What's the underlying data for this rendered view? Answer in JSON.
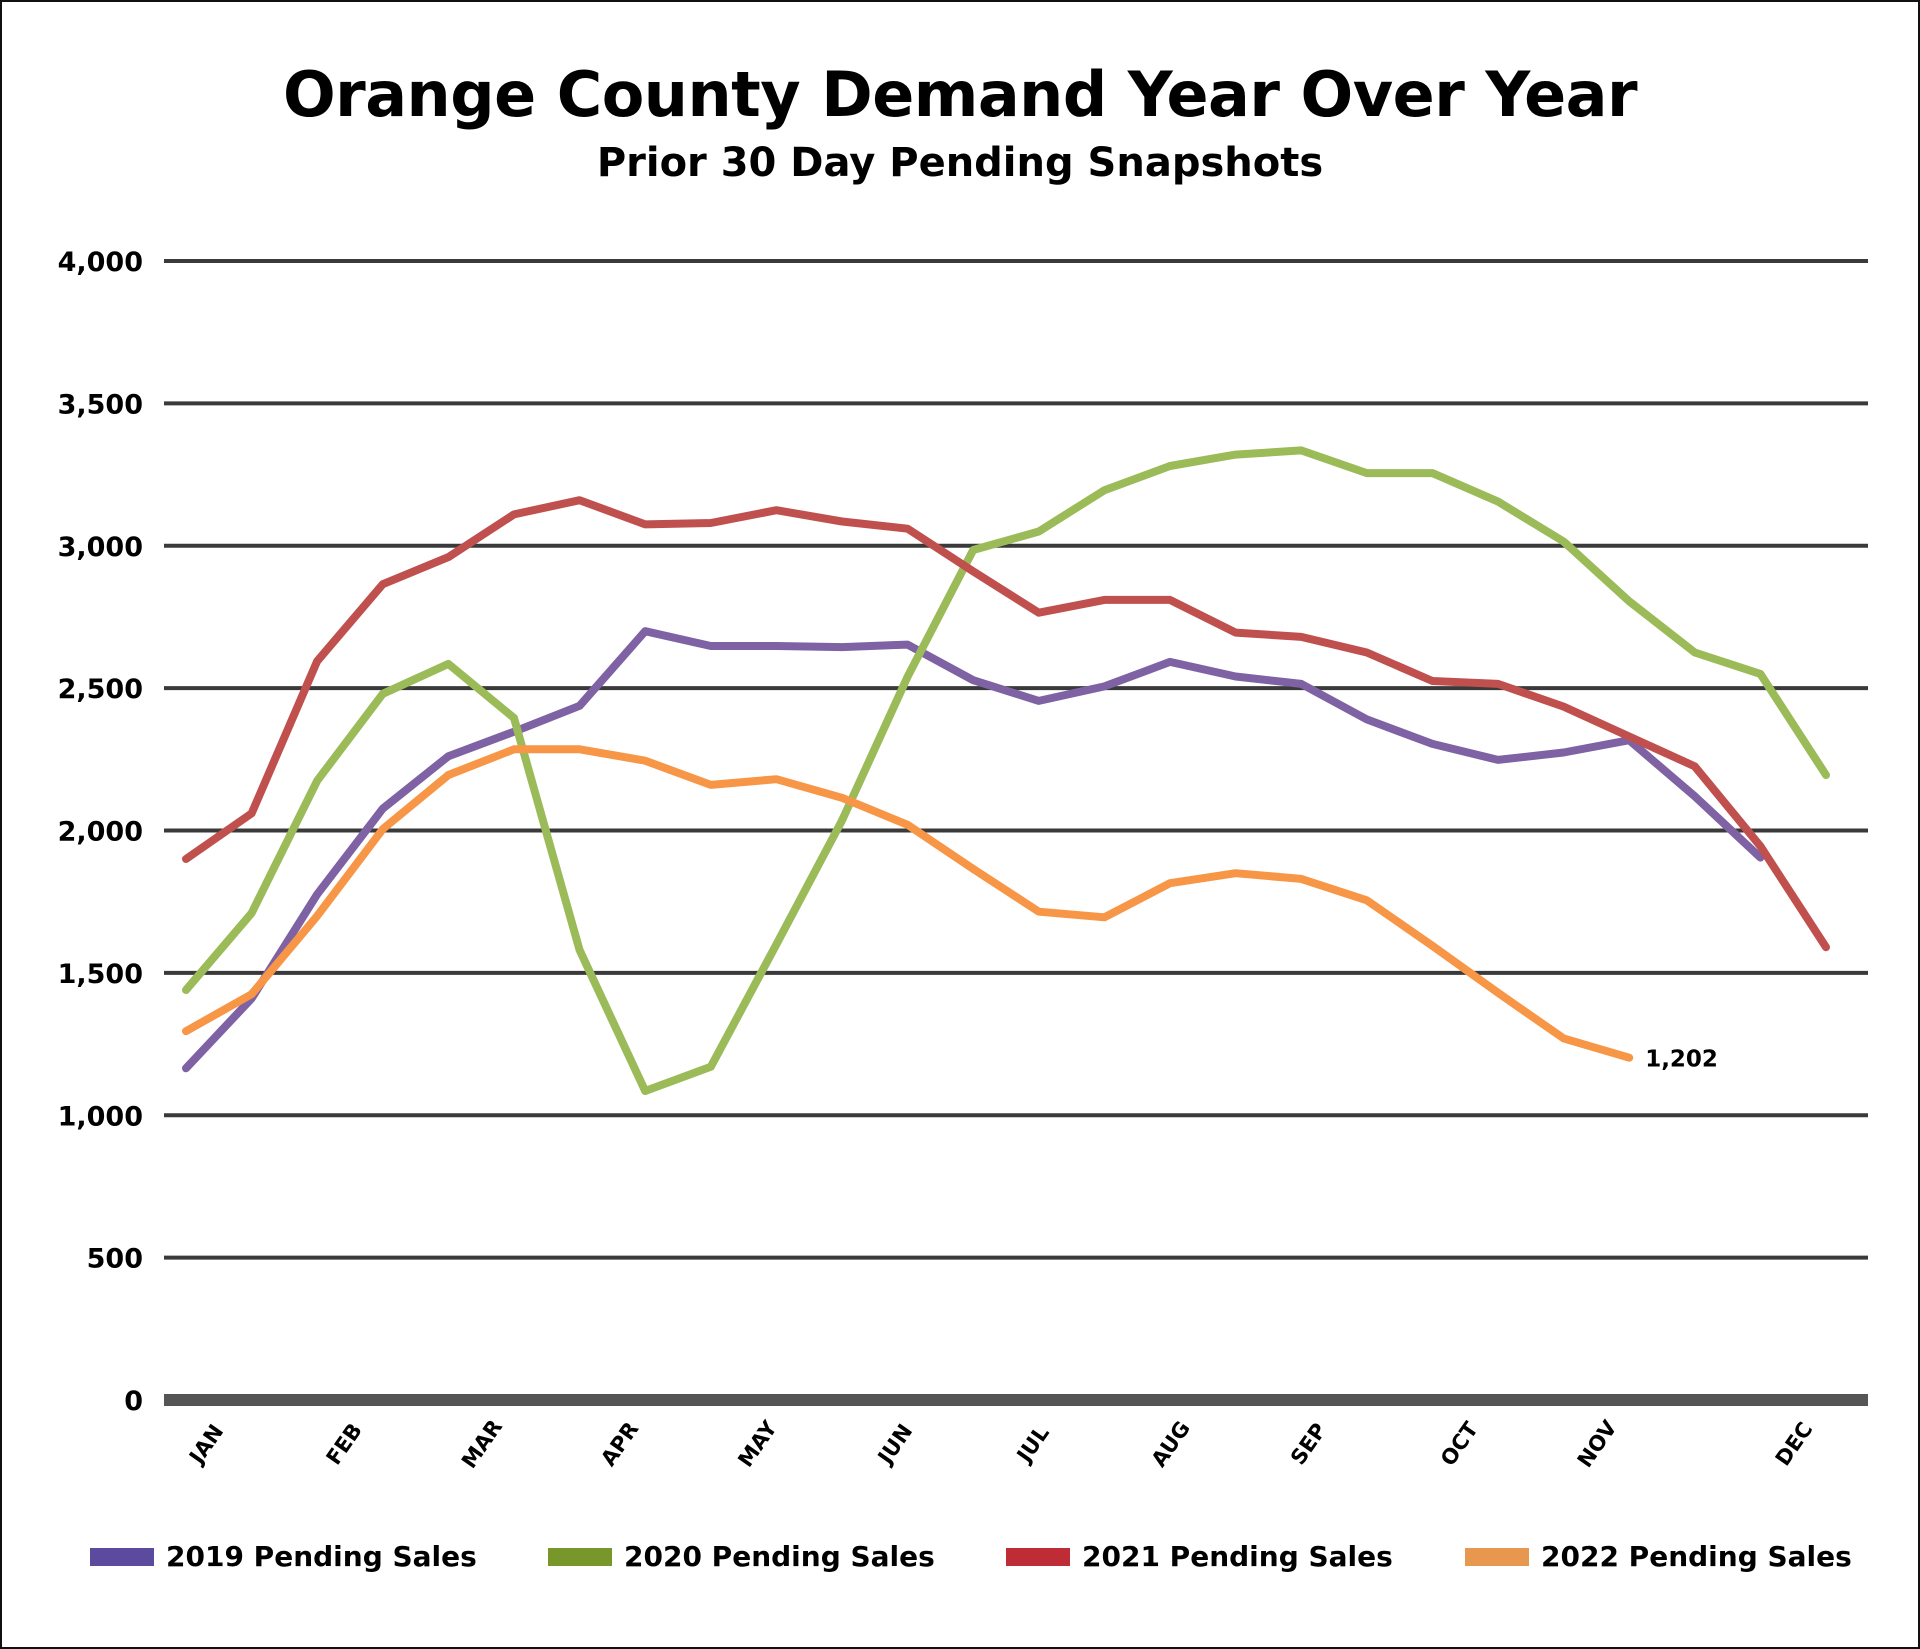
{
  "chart_data": {
    "type": "line",
    "title": "Orange County Demand Year Over Year",
    "subtitle": "Prior 30 Day Pending Snapshots",
    "xlabel": "",
    "ylabel": "",
    "ylim": [
      0,
      4000
    ],
    "yticks": [
      0,
      500,
      1000,
      1500,
      2000,
      2500,
      3000,
      3500,
      4000
    ],
    "ytick_labels": [
      "0",
      "500",
      "1,000",
      "1,500",
      "2,000",
      "2,500",
      "3,000",
      "3,500",
      "4,000"
    ],
    "x_points": 26,
    "month_labels": [
      {
        "label": "JAN",
        "index": 0.4
      },
      {
        "label": "FEB",
        "index": 2.5
      },
      {
        "label": "MAR",
        "index": 4.6
      },
      {
        "label": "APR",
        "index": 6.7
      },
      {
        "label": "MAY",
        "index": 8.8
      },
      {
        "label": "JUN",
        "index": 10.9
      },
      {
        "label": "JUL",
        "index": 13.0
      },
      {
        "label": "AUG",
        "index": 15.1
      },
      {
        "label": "SEP",
        "index": 17.2
      },
      {
        "label": "OCT",
        "index": 19.5
      },
      {
        "label": "NOV",
        "index": 21.6
      },
      {
        "label": "DEC",
        "index": 24.6
      }
    ],
    "grid": true,
    "legend_position": "bottom",
    "series": [
      {
        "name": "2019 Pending Sales",
        "color": "#7E62A4",
        "legend_color": "#5B4A9E",
        "values": [
          1165,
          1410,
          1776,
          2077,
          2261,
          2347,
          2438,
          2700,
          2648,
          2648,
          2644,
          2653,
          2528,
          2455,
          2506,
          2592,
          2541,
          2515,
          2390,
          2304,
          2248,
          2274,
          2317,
          2120,
          1905,
          null
        ]
      },
      {
        "name": "2020 Pending Sales",
        "color": "#9BBB59",
        "legend_color": "#77972A",
        "values": [
          1440,
          1710,
          2175,
          2480,
          2585,
          2395,
          1580,
          1085,
          1170,
          1600,
          2035,
          2540,
          2985,
          3050,
          3195,
          3280,
          3320,
          3335,
          3255,
          3255,
          3155,
          3015,
          2805,
          2625,
          2550,
          2195
        ]
      },
      {
        "name": "2021 Pending Sales",
        "color": "#C0504D",
        "legend_color": "#BE2D35",
        "values": [
          1900,
          2060,
          2595,
          2865,
          2960,
          3110,
          3160,
          3075,
          3080,
          3125,
          3085,
          3060,
          2910,
          2765,
          2810,
          2810,
          2695,
          2680,
          2625,
          2525,
          2515,
          2435,
          2330,
          2225,
          1945,
          1590
        ]
      },
      {
        "name": "2022 Pending Sales",
        "color": "#F79646",
        "legend_color": "#E8984E",
        "values": [
          1295,
          1425,
          1700,
          2005,
          2195,
          2285,
          2285,
          2245,
          2160,
          2180,
          2115,
          2020,
          1865,
          1715,
          1695,
          1815,
          1850,
          1830,
          1755,
          1595,
          1430,
          1270,
          1202,
          null,
          null,
          null
        ]
      }
    ],
    "annotations": [
      {
        "series": "2022 Pending Sales",
        "index": 22,
        "text": "1,202"
      }
    ]
  }
}
